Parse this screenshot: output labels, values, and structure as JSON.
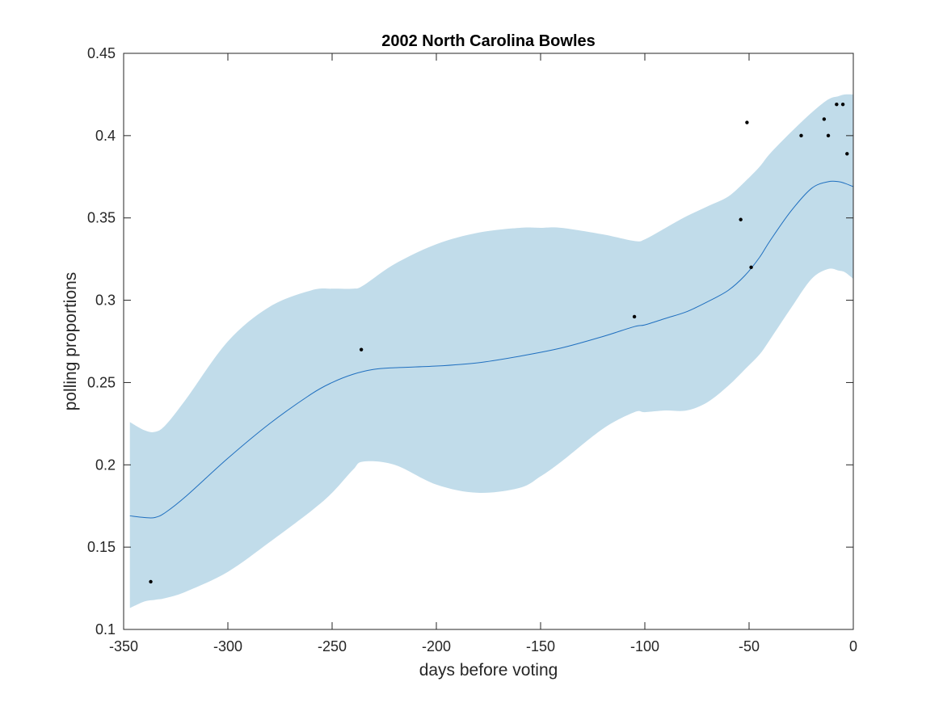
{
  "chart_data": {
    "type": "line",
    "title": "2002 North Carolina Bowles",
    "xlabel": "days before voting",
    "ylabel": "polling proportions",
    "xlim": [
      -350,
      0
    ],
    "ylim": [
      0.1,
      0.45
    ],
    "xticks": [
      -350,
      -300,
      -250,
      -200,
      -150,
      -100,
      -50,
      0
    ],
    "xtick_labels": [
      "-350",
      "-300",
      "-250",
      "-200",
      "-150",
      "-100",
      "-50",
      "0"
    ],
    "yticks": [
      0.1,
      0.15,
      0.2,
      0.25,
      0.3,
      0.35,
      0.4,
      0.45
    ],
    "ytick_labels": [
      "0.1",
      "0.15",
      "0.2",
      "0.25",
      "0.3",
      "0.35",
      "0.4",
      "0.45"
    ],
    "grid": false,
    "colors": {
      "band": "#c1dcea",
      "line": "#1f6fbf",
      "points": "#000000",
      "axes": "#262626"
    },
    "band": {
      "x": [
        -347,
        -340,
        -335,
        -330,
        -320,
        -300,
        -280,
        -260,
        -250,
        -240,
        -235,
        -220,
        -200,
        -180,
        -160,
        -150,
        -140,
        -120,
        -105,
        -100,
        -90,
        -80,
        -70,
        -60,
        -52,
        -45,
        -40,
        -30,
        -20,
        -12,
        -7,
        -4,
        0
      ],
      "upper": [
        0.226,
        0.221,
        0.22,
        0.224,
        0.24,
        0.275,
        0.296,
        0.306,
        0.307,
        0.307,
        0.309,
        0.322,
        0.334,
        0.341,
        0.344,
        0.344,
        0.344,
        0.34,
        0.336,
        0.337,
        0.344,
        0.351,
        0.357,
        0.363,
        0.372,
        0.381,
        0.389,
        0.402,
        0.414,
        0.422,
        0.424,
        0.425,
        0.425
      ],
      "lower": [
        0.113,
        0.117,
        0.118,
        0.119,
        0.123,
        0.135,
        0.153,
        0.172,
        0.183,
        0.197,
        0.202,
        0.2,
        0.188,
        0.183,
        0.186,
        0.193,
        0.202,
        0.222,
        0.232,
        0.232,
        0.233,
        0.233,
        0.238,
        0.248,
        0.258,
        0.267,
        0.276,
        0.295,
        0.313,
        0.319,
        0.318,
        0.317,
        0.313
      ]
    },
    "series": [
      {
        "x": [
          -347,
          -340,
          -335,
          -330,
          -320,
          -300,
          -280,
          -260,
          -250,
          -240,
          -230,
          -220,
          -200,
          -180,
          -160,
          -140,
          -120,
          -105,
          -100,
          -90,
          -80,
          -70,
          -60,
          -52,
          -45,
          -40,
          -30,
          -20,
          -12,
          -7,
          -4,
          0
        ],
        "y": [
          0.169,
          0.168,
          0.168,
          0.171,
          0.181,
          0.204,
          0.225,
          0.243,
          0.25,
          0.255,
          0.258,
          0.259,
          0.26,
          0.262,
          0.266,
          0.271,
          0.278,
          0.284,
          0.285,
          0.289,
          0.293,
          0.299,
          0.306,
          0.315,
          0.326,
          0.336,
          0.354,
          0.368,
          0.372,
          0.372,
          0.371,
          0.369
        ]
      }
    ],
    "points": [
      {
        "x": -337,
        "y": 0.129
      },
      {
        "x": -236,
        "y": 0.27
      },
      {
        "x": -105,
        "y": 0.29
      },
      {
        "x": -54,
        "y": 0.349
      },
      {
        "x": -51,
        "y": 0.408
      },
      {
        "x": -49,
        "y": 0.32
      },
      {
        "x": -25,
        "y": 0.4
      },
      {
        "x": -14,
        "y": 0.41
      },
      {
        "x": -12,
        "y": 0.4
      },
      {
        "x": -8,
        "y": 0.419
      },
      {
        "x": -5,
        "y": 0.419
      },
      {
        "x": -3,
        "y": 0.389
      }
    ]
  }
}
